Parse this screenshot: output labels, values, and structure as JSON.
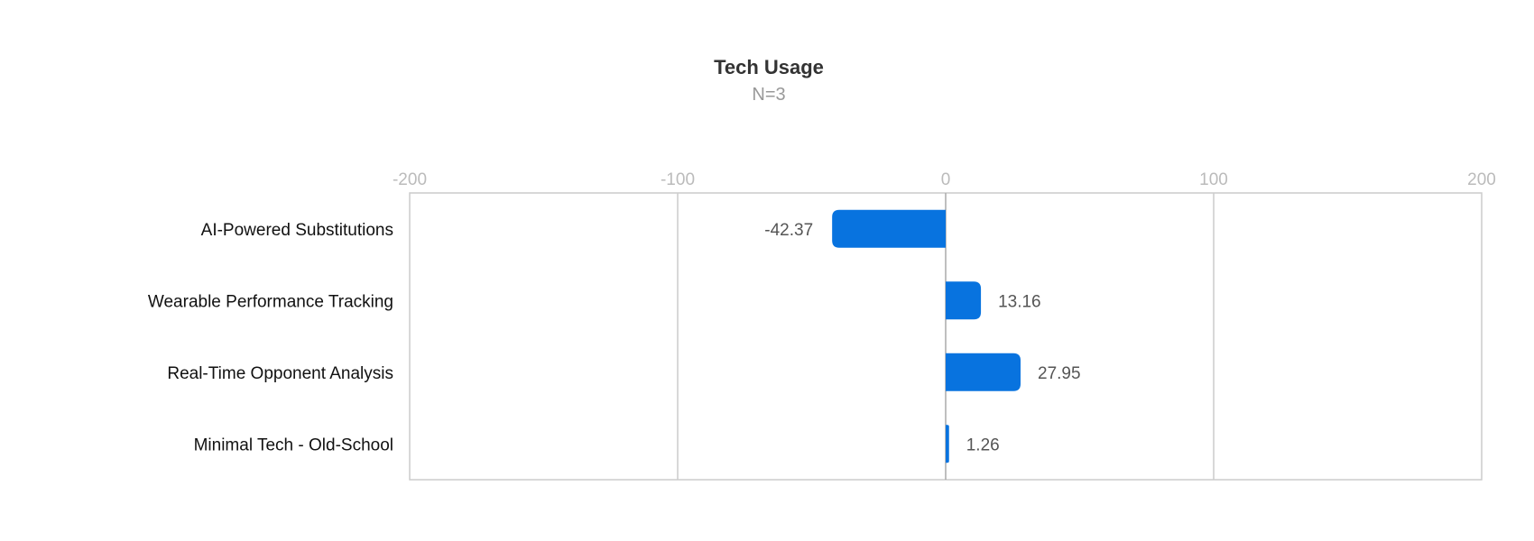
{
  "chart_data": {
    "type": "bar",
    "orientation": "horizontal",
    "title": "Tech Usage",
    "subtitle": "N=3",
    "categories": [
      "AI-Powered Substitutions",
      "Wearable Performance Tracking",
      "Real-Time Opponent Analysis",
      "Minimal Tech - Old-School"
    ],
    "values": [
      -42.37,
      13.16,
      27.95,
      1.26
    ],
    "value_labels": [
      "-42.37",
      "13.16",
      "27.95",
      "1.26"
    ],
    "xlim": [
      -200,
      200
    ],
    "x_ticks": [
      -200,
      -100,
      0,
      100,
      200
    ],
    "x_tick_labels": [
      "-200",
      "-100",
      "0",
      "100",
      "200"
    ],
    "axis_position": "top",
    "grid": true,
    "legend": "none",
    "bar_color": "#0873DF",
    "grid_color": "#CCCCCC"
  }
}
